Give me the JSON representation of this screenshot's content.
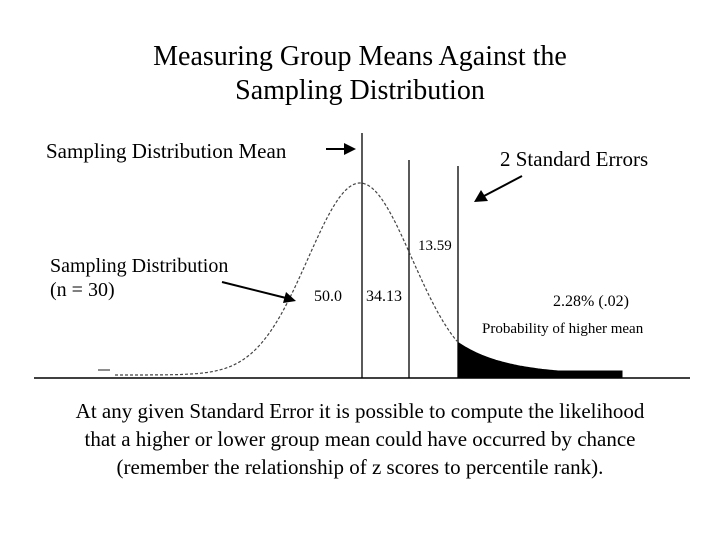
{
  "title": {
    "line1": "Measuring Group Means Against the",
    "line2": "Sampling Distribution"
  },
  "labels": {
    "sampling_distribution_mean": "Sampling Distribution Mean",
    "two_standard_errors": "2 Standard Errors",
    "sampling_distribution_line1": "Sampling Distribution",
    "sampling_distribution_line2": "(n = 30)",
    "pct_50": "50.0",
    "pct_3413": "34.13",
    "pct_1359": "13.59",
    "tail_pct": "2.28% (.02)",
    "tail_probability": "Probability of higher mean"
  },
  "caption": {
    "line1": "At any given Standard Error it is possible to compute the likelihood",
    "line2": "that a higher or lower group mean could have occurred by chance",
    "line3": "(remember the relationship of z scores to percentile rank)."
  },
  "colors": {
    "ink": "#000000",
    "curve": "#444444"
  },
  "icons": [
    "arrow-right-icon",
    "arrow-down-left-icon",
    "arrow-right-down-icon"
  ]
}
